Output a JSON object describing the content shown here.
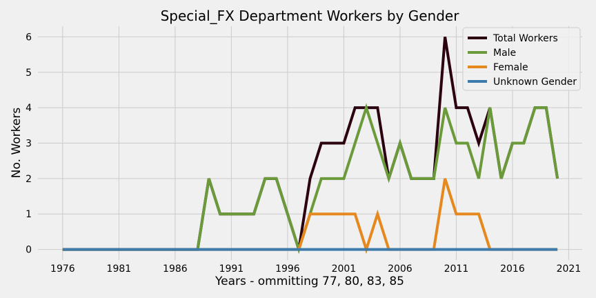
{
  "chart_data": {
    "type": "line",
    "title": "Special_FX Department Workers by Gender",
    "xlabel": "Years - ommitting 77, 80, 83, 85",
    "ylabel": "No. Workers",
    "xlim": [
      1973.8,
      2022.2
    ],
    "ylim": [
      -0.3,
      6.3
    ],
    "xticks": [
      1976,
      1981,
      1986,
      1991,
      1996,
      2001,
      2006,
      2011,
      2016,
      2021
    ],
    "yticks": [
      0,
      1,
      2,
      3,
      4,
      5,
      6
    ],
    "grid": true,
    "legend_position": "top-right",
    "x": [
      1976,
      1977,
      1978,
      1979,
      1980,
      1981,
      1982,
      1983,
      1984,
      1985,
      1986,
      1987,
      1988,
      1989,
      1990,
      1991,
      1992,
      1993,
      1994,
      1995,
      1996,
      1997,
      1998,
      1999,
      2000,
      2001,
      2002,
      2003,
      2004,
      2005,
      2006,
      2007,
      2008,
      2009,
      2010,
      2011,
      2012,
      2013,
      2014,
      2015,
      2016,
      2017,
      2018,
      2019,
      2020
    ],
    "series": [
      {
        "name": "Total Workers",
        "color": "#2b0010",
        "values": [
          0,
          0,
          0,
          0,
          0,
          0,
          0,
          0,
          0,
          0,
          0,
          0,
          0,
          2,
          1,
          1,
          1,
          1,
          2,
          2,
          1,
          0,
          2,
          3,
          3,
          3,
          4,
          4,
          4,
          2,
          3,
          2,
          2,
          2,
          6,
          4,
          4,
          3,
          4,
          2,
          3,
          3,
          4,
          4,
          2
        ]
      },
      {
        "name": "Male",
        "color": "#6a9a3a",
        "values": [
          0,
          0,
          0,
          0,
          0,
          0,
          0,
          0,
          0,
          0,
          0,
          0,
          0,
          2,
          1,
          1,
          1,
          1,
          2,
          2,
          1,
          0,
          1,
          2,
          2,
          2,
          3,
          4,
          3,
          2,
          3,
          2,
          2,
          2,
          4,
          3,
          3,
          2,
          4,
          2,
          3,
          3,
          4,
          4,
          2
        ]
      },
      {
        "name": "Female",
        "color": "#e5891e",
        "values": [
          0,
          0,
          0,
          0,
          0,
          0,
          0,
          0,
          0,
          0,
          0,
          0,
          0,
          0,
          0,
          0,
          0,
          0,
          0,
          0,
          0,
          0,
          1,
          1,
          1,
          1,
          1,
          0,
          1,
          0,
          0,
          0,
          0,
          0,
          2,
          1,
          1,
          1,
          0,
          0,
          0,
          0,
          0,
          0,
          0
        ]
      },
      {
        "name": "Unknown Gender",
        "color": "#3c7bac",
        "values": [
          0,
          0,
          0,
          0,
          0,
          0,
          0,
          0,
          0,
          0,
          0,
          0,
          0,
          0,
          0,
          0,
          0,
          0,
          0,
          0,
          0,
          0,
          0,
          0,
          0,
          0,
          0,
          0,
          0,
          0,
          0,
          0,
          0,
          0,
          0,
          0,
          0,
          0,
          0,
          0,
          0,
          0,
          0,
          0,
          0
        ]
      }
    ]
  }
}
